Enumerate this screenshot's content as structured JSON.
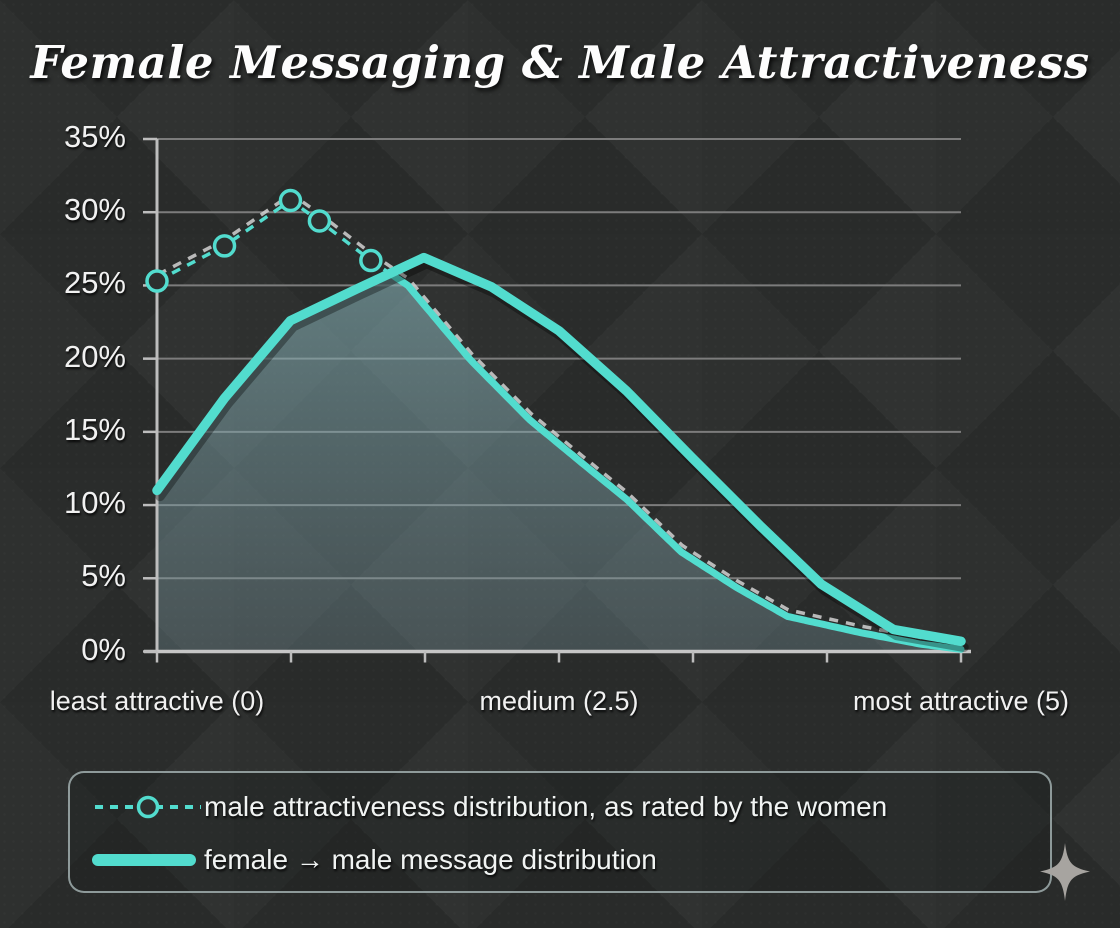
{
  "chart_data": {
    "type": "line",
    "title": "Female Messaging & Male Attractiveness",
    "xlim": [
      0,
      5
    ],
    "ylim": [
      0,
      35
    ],
    "grid": true,
    "legend_position": "bottom",
    "x_axis": {
      "tick_count": 7,
      "labels": [
        {
          "text": "least attractive (0)",
          "x": 0
        },
        {
          "text": "medium (2.5)",
          "x": 2.5
        },
        {
          "text": "most attractive (5)",
          "x": 5
        }
      ]
    },
    "y_axis": {
      "unit": "%",
      "tick_values": [
        35,
        30,
        25,
        20,
        15,
        10,
        5,
        0
      ],
      "tick_labels_top_to_bottom": [
        "35%",
        "30%",
        "25%",
        "20%",
        "15%",
        "10%",
        "5%",
        "0%"
      ]
    },
    "series": [
      {
        "name": "male attractiveness distribution, as rated by the women",
        "style": "dashed",
        "marker": "circle-outline",
        "markers_x": [
          0,
          0.42,
          0.83,
          1.01,
          1.33
        ],
        "points": [
          [
            0,
            25.3
          ],
          [
            0.42,
            27.7
          ],
          [
            0.83,
            30.8
          ],
          [
            1.01,
            29.4
          ],
          [
            1.33,
            26.7
          ],
          [
            1.56,
            25.0
          ],
          [
            1.95,
            19.9
          ],
          [
            2.32,
            15.8
          ],
          [
            2.64,
            12.9
          ],
          [
            2.92,
            10.4
          ],
          [
            3.26,
            6.8
          ],
          [
            3.6,
            4.4
          ],
          [
            3.92,
            2.4
          ],
          [
            4.37,
            1.3
          ],
          [
            4.75,
            0.5
          ],
          [
            5,
            0.15
          ]
        ]
      },
      {
        "name": "female → male message distribution",
        "style": "solid-thick",
        "marker": "none",
        "points": [
          [
            0,
            11.0
          ],
          [
            0.42,
            17.3
          ],
          [
            0.83,
            22.6
          ],
          [
            1.25,
            24.8
          ],
          [
            1.66,
            26.9
          ],
          [
            2.08,
            24.9
          ],
          [
            2.5,
            21.9
          ],
          [
            2.92,
            17.8
          ],
          [
            3.33,
            13.2
          ],
          [
            3.75,
            8.6
          ],
          [
            4.13,
            4.6
          ],
          [
            4.58,
            1.5
          ],
          [
            5,
            0.7
          ]
        ]
      }
    ],
    "overlap_area_fill": "area under the lower of the two curves is shaded teal-gray down to the x-axis"
  },
  "colors": {
    "accent_teal": "#52dcce",
    "dashed_shadow": "#d2d2d2",
    "grid_line": "#7c7c7c",
    "axis_line": "#bdbdbd",
    "label_text": "#f1f1f1",
    "background": "#2c2e2d",
    "fill_top": "rgba(134,178,183,0.60)",
    "fill_bottom": "rgba(120,148,156,0.34)",
    "legend_border": "rgba(178,194,194,0.75)",
    "sparkle": "#a7a4a0"
  },
  "icons": {
    "legend_key_1": "dashed-line-with-circle-marker",
    "legend_key_2": "thick-rounded-line",
    "corner_decoration": "four-point-sparkle-star"
  }
}
